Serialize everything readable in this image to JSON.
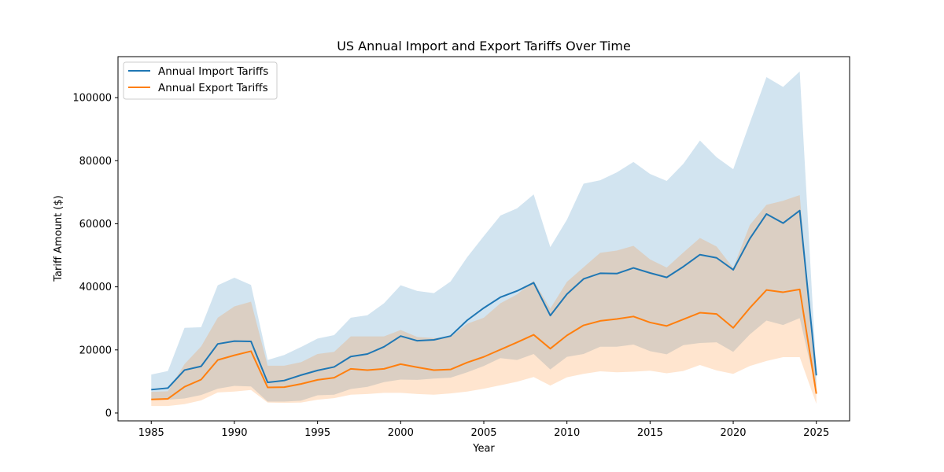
{
  "chart_data": {
    "type": "line",
    "title": "US Annual Import and Export Tariffs Over Time",
    "xlabel": "Year",
    "ylabel": "Tariff Amount ($)",
    "xlim": [
      1983,
      2027
    ],
    "ylim": [
      -2500,
      113000
    ],
    "xticks": [
      1985,
      1990,
      1995,
      2000,
      2005,
      2010,
      2015,
      2020,
      2025
    ],
    "yticks": [
      0,
      20000,
      40000,
      60000,
      80000,
      100000
    ],
    "grid": false,
    "legend_position": "top-left",
    "x": [
      1985,
      1986,
      1987,
      1988,
      1989,
      1990,
      1991,
      1992,
      1993,
      1994,
      1995,
      1996,
      1997,
      1998,
      1999,
      2000,
      2001,
      2002,
      2003,
      2004,
      2005,
      2006,
      2007,
      2008,
      2009,
      2010,
      2011,
      2012,
      2013,
      2014,
      2015,
      2016,
      2017,
      2018,
      2019,
      2020,
      2021,
      2022,
      2023,
      2024,
      2025
    ],
    "series": [
      {
        "name": "Annual Import Tariffs",
        "color": "#1f77b4",
        "values": [
          7400,
          7900,
          13600,
          14800,
          21900,
          22800,
          22700,
          9700,
          10300,
          12000,
          13500,
          14600,
          17900,
          18700,
          21000,
          24400,
          22900,
          23200,
          24400,
          29400,
          33300,
          36700,
          38700,
          41300,
          30900,
          37700,
          42500,
          44300,
          44200,
          46000,
          44400,
          43000,
          46400,
          50200,
          49200,
          45400,
          55300,
          63100,
          60200,
          64200,
          11900
        ],
        "band_upper": [
          12200,
          13300,
          27000,
          27200,
          40500,
          42900,
          40600,
          16800,
          18400,
          20900,
          23600,
          24700,
          30200,
          31000,
          34800,
          40500,
          38700,
          38000,
          41700,
          49400,
          56100,
          62600,
          64900,
          69300,
          52600,
          61300,
          72700,
          73800,
          76300,
          79600,
          75800,
          73600,
          79000,
          86400,
          81100,
          77300,
          92000,
          106500,
          103400,
          108300,
          13000
        ],
        "band_lower": [
          4100,
          4200,
          4600,
          5700,
          7700,
          8600,
          8400,
          3600,
          3600,
          3900,
          5600,
          5800,
          7600,
          8300,
          9800,
          10600,
          10500,
          10900,
          11200,
          12900,
          14900,
          17400,
          16800,
          18700,
          13800,
          17800,
          18700,
          21000,
          21000,
          21700,
          19600,
          18600,
          21500,
          22200,
          22400,
          19400,
          24900,
          29300,
          27900,
          30100,
          7200
        ]
      },
      {
        "name": "Annual Export Tariffs",
        "color": "#ff7f0e",
        "values": [
          4300,
          4500,
          8300,
          10600,
          16800,
          18300,
          19600,
          8100,
          8200,
          9200,
          10500,
          11200,
          14000,
          13600,
          14000,
          15500,
          14500,
          13600,
          13800,
          16000,
          17800,
          20100,
          22400,
          24800,
          20400,
          24600,
          27800,
          29200,
          29800,
          30600,
          28700,
          27600,
          29700,
          31800,
          31400,
          27000,
          33300,
          39000,
          38300,
          39200,
          6100
        ],
        "band_upper": [
          6700,
          6900,
          15500,
          21100,
          30200,
          33800,
          35300,
          15000,
          15000,
          16100,
          18700,
          19400,
          24300,
          24300,
          24300,
          26300,
          24100,
          23800,
          24100,
          28300,
          30200,
          34800,
          37600,
          41900,
          33100,
          41600,
          46200,
          50800,
          51500,
          53000,
          48700,
          46100,
          50900,
          55500,
          52800,
          46000,
          59600,
          66000,
          67300,
          69100,
          9000
        ],
        "band_lower": [
          2200,
          2200,
          2800,
          4000,
          6500,
          6800,
          7300,
          3300,
          3200,
          3300,
          4200,
          4700,
          5800,
          6000,
          6400,
          6400,
          6000,
          5800,
          6200,
          6800,
          7700,
          8800,
          9900,
          11400,
          8700,
          11300,
          12400,
          13200,
          12900,
          13100,
          13400,
          12600,
          13300,
          15200,
          13500,
          12400,
          14900,
          16500,
          17700,
          17700,
          2900
        ]
      }
    ]
  }
}
